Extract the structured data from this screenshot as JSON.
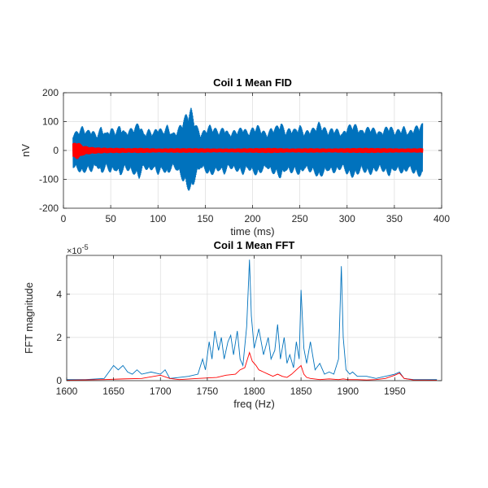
{
  "chart_data": [
    {
      "type": "line",
      "title": "Coil 1 Mean FID",
      "xlabel": "time (ms)",
      "ylabel": "nV",
      "xlim": [
        0,
        400
      ],
      "ylim": [
        -200,
        200
      ],
      "xticks": [
        0,
        50,
        100,
        150,
        200,
        250,
        300,
        350,
        400
      ],
      "yticks": [
        -200,
        -100,
        0,
        100,
        200
      ],
      "grid": true,
      "series": [
        {
          "color": "#0072bd",
          "style": "oscillating envelope",
          "x": [
            10,
            15,
            20,
            25,
            30,
            35,
            40,
            45,
            50,
            55,
            60,
            65,
            70,
            75,
            80,
            85,
            90,
            95,
            100,
            105,
            110,
            115,
            120,
            125,
            130,
            135,
            140,
            145,
            150,
            155,
            160,
            165,
            170,
            175,
            180,
            185,
            190,
            195,
            200,
            205,
            210,
            215,
            220,
            225,
            230,
            235,
            240,
            245,
            250,
            255,
            260,
            265,
            270,
            275,
            280,
            285,
            290,
            295,
            300,
            305,
            310,
            315,
            320,
            325,
            330,
            335,
            340,
            345,
            350,
            355,
            360,
            365,
            370,
            375,
            380
          ],
          "envelope": [
            60,
            70,
            85,
            70,
            75,
            55,
            85,
            60,
            80,
            70,
            90,
            65,
            75,
            85,
            100,
            60,
            75,
            65,
            85,
            70,
            90,
            60,
            70,
            100,
            130,
            150,
            95,
            60,
            75,
            90,
            80,
            70,
            85,
            60,
            70,
            75,
            85,
            65,
            80,
            90,
            75,
            60,
            80,
            85,
            100,
            70,
            80,
            75,
            90,
            65,
            75,
            80,
            100,
            85,
            70,
            80,
            75,
            60,
            85,
            95,
            90,
            70,
            80,
            85,
            75,
            65,
            80,
            90,
            70,
            75,
            85,
            65,
            80,
            90,
            95
          ]
        },
        {
          "color": "#ff0000",
          "style": "oscillating envelope",
          "x": [
            10,
            15,
            20,
            25,
            30,
            40,
            50,
            60,
            70,
            80,
            90,
            100,
            120,
            140,
            160,
            180,
            200,
            220,
            240,
            260,
            280,
            300,
            320,
            340,
            360,
            380
          ],
          "envelope": [
            25,
            30,
            18,
            14,
            12,
            10,
            9,
            9,
            8,
            9,
            8,
            7,
            8,
            8,
            7,
            7,
            8,
            9,
            7,
            8,
            7,
            8,
            9,
            8,
            7,
            8
          ]
        }
      ]
    },
    {
      "type": "line",
      "title": "Coil 1 Mean FFT",
      "xlabel": "freq (Hz)",
      "ylabel": "FFT magnitude",
      "y_exponent": "×10^-5",
      "y_exponent_base": "×10",
      "y_exponent_power": "-5",
      "xlim": [
        1600,
        2000
      ],
      "ylim": [
        0,
        5.8
      ],
      "xticks": [
        1600,
        1650,
        1700,
        1750,
        1800,
        1850,
        1900,
        1950
      ],
      "yticks": [
        0,
        2,
        4
      ],
      "grid": true,
      "series": [
        {
          "color": "#0072bd",
          "x": [
            1600,
            1620,
            1640,
            1645,
            1650,
            1655,
            1660,
            1665,
            1670,
            1675,
            1680,
            1690,
            1700,
            1705,
            1710,
            1720,
            1730,
            1740,
            1745,
            1748,
            1752,
            1755,
            1758,
            1762,
            1765,
            1768,
            1772,
            1775,
            1778,
            1782,
            1785,
            1788,
            1792,
            1795,
            1797,
            1800,
            1805,
            1810,
            1815,
            1818,
            1822,
            1825,
            1828,
            1832,
            1835,
            1838,
            1842,
            1845,
            1848,
            1850,
            1853,
            1856,
            1860,
            1865,
            1870,
            1875,
            1880,
            1885,
            1890,
            1893,
            1895,
            1898,
            1902,
            1905,
            1910,
            1920,
            1930,
            1940,
            1950,
            1955,
            1960,
            1970,
            1980,
            1995
          ],
          "y": [
            0.05,
            0.05,
            0.1,
            0.4,
            0.7,
            0.5,
            0.7,
            0.4,
            0.3,
            0.5,
            0.3,
            0.4,
            0.3,
            0.5,
            0.1,
            0.15,
            0.2,
            0.3,
            1.0,
            0.5,
            1.8,
            1.0,
            2.3,
            1.4,
            2.0,
            1.0,
            1.8,
            2.1,
            1.2,
            2.3,
            1.0,
            0.7,
            2.5,
            5.6,
            3.0,
            1.5,
            2.4,
            1.2,
            2.0,
            1.0,
            1.4,
            2.6,
            1.0,
            2.0,
            0.8,
            1.2,
            0.6,
            1.8,
            1.0,
            4.2,
            1.5,
            0.8,
            1.8,
            0.5,
            0.8,
            0.3,
            0.4,
            0.3,
            1.0,
            5.3,
            2.0,
            0.5,
            0.3,
            0.4,
            0.2,
            0.2,
            0.1,
            0.2,
            0.3,
            0.4,
            0.1,
            0.05,
            0.05,
            0.05
          ]
        },
        {
          "color": "#ff0000",
          "x": [
            1600,
            1640,
            1660,
            1680,
            1700,
            1710,
            1720,
            1740,
            1760,
            1770,
            1780,
            1785,
            1790,
            1795,
            1798,
            1802,
            1805,
            1810,
            1815,
            1820,
            1825,
            1830,
            1835,
            1840,
            1845,
            1850,
            1853,
            1856,
            1860,
            1870,
            1880,
            1890,
            1895,
            1900,
            1910,
            1920,
            1930,
            1940,
            1950,
            1955,
            1960,
            1970,
            1995
          ],
          "y": [
            0.02,
            0.05,
            0.08,
            0.1,
            0.25,
            0.1,
            0.05,
            0.1,
            0.15,
            0.25,
            0.3,
            0.5,
            0.6,
            1.3,
            0.9,
            0.7,
            0.5,
            0.4,
            0.3,
            0.2,
            0.3,
            0.2,
            0.15,
            0.3,
            0.5,
            0.7,
            0.3,
            0.15,
            0.1,
            0.05,
            0.08,
            0.05,
            0.08,
            0.05,
            0.05,
            0.03,
            0.05,
            0.1,
            0.25,
            0.35,
            0.1,
            0.03,
            0.02
          ]
        }
      ]
    }
  ]
}
